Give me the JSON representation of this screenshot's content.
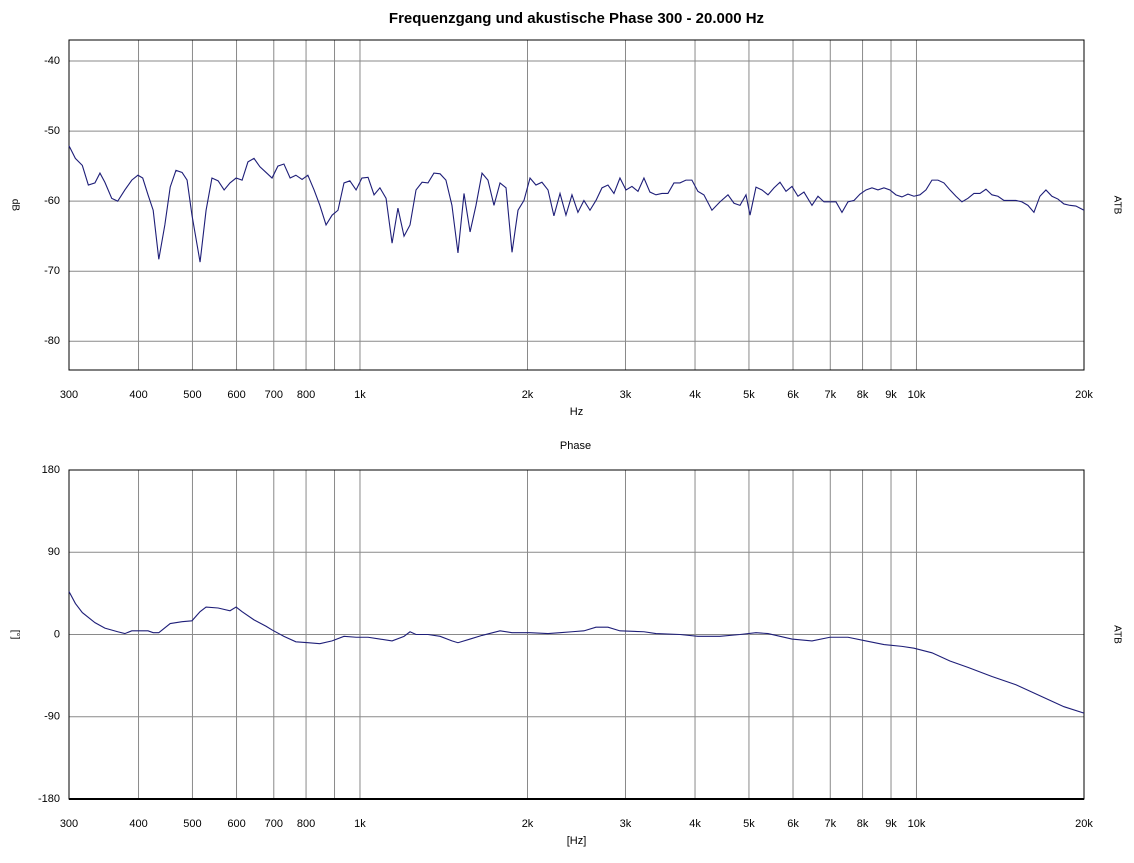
{
  "chart_data": [
    {
      "type": "line",
      "title": "Frequenzgang und akustische Phase  300 - 20.000 Hz",
      "xlabel": "Hz",
      "ylabel": "dB",
      "log_x": true,
      "grid": true,
      "x": [
        300,
        308,
        317,
        325,
        334,
        341,
        348,
        358,
        367,
        378,
        389,
        399,
        407,
        416,
        425,
        435,
        446,
        456,
        467,
        479,
        489,
        499,
        516,
        529,
        542,
        556,
        570,
        584,
        599,
        614,
        629,
        645,
        661,
        678,
        695,
        712,
        730,
        749,
        767,
        787,
        806,
        827,
        847,
        869,
        891,
        913,
        936,
        959,
        984,
        1008,
        1034,
        1060,
        1086,
        1114,
        1142,
        1170,
        1200,
        1230,
        1261,
        1293,
        1325,
        1358,
        1393,
        1427,
        1463,
        1500,
        1538,
        1577,
        1616,
        1657,
        1698,
        1741,
        1785,
        1830,
        1876,
        1923,
        1971,
        2021,
        2071,
        2123,
        2177,
        2231,
        2288,
        2345,
        2404,
        2464,
        2526,
        2590,
        2655,
        2722,
        2790,
        2860,
        2932,
        3006,
        3081,
        3159,
        3238,
        3319,
        3403,
        3488,
        3576,
        3666,
        3758,
        3852,
        3949,
        4048,
        4150,
        4290,
        4435,
        4584,
        4700,
        4818,
        4939,
        5022,
        5148,
        5277,
        5410,
        5546,
        5685,
        5828,
        5974,
        6124,
        6278,
        6490,
        6653,
        6820,
        6991,
        7167,
        7347,
        7531,
        7721,
        7915,
        8114,
        8318,
        8527,
        8741,
        8960,
        9185,
        9417,
        9653,
        9896,
        10144,
        10400,
        10661,
        10929,
        11203,
        11485,
        11774,
        12070,
        12373,
        12684,
        13003,
        13330,
        13665,
        14008,
        14361,
        14722,
        15091,
        15470,
        15859,
        16258,
        16666,
        17085,
        17515,
        17955,
        18406,
        18868,
        19342,
        20000
      ],
      "series": [
        {
          "name": "ATB",
          "color": "#1e1e78",
          "values": [
            -52.1,
            -53.9,
            -54.9,
            -57.7,
            -57.4,
            -56.0,
            -57.3,
            -59.6,
            -60.0,
            -58.4,
            -57.0,
            -56.3,
            -56.7,
            -59.1,
            -61.3,
            -68.3,
            -63.4,
            -58.0,
            -55.6,
            -55.9,
            -57.0,
            -62.0,
            -68.7,
            -61.3,
            -56.7,
            -57.1,
            -58.4,
            -57.4,
            -56.7,
            -57.0,
            -54.4,
            -53.9,
            -55.1,
            -55.9,
            -56.7,
            -55.0,
            -54.7,
            -56.7,
            -56.3,
            -56.9,
            -56.3,
            -58.4,
            -60.6,
            -63.4,
            -62.0,
            -61.3,
            -57.4,
            -57.1,
            -58.4,
            -56.7,
            -56.6,
            -59.1,
            -58.1,
            -59.6,
            -66.0,
            -61.0,
            -65.0,
            -63.4,
            -58.4,
            -57.3,
            -57.4,
            -56.0,
            -56.1,
            -57.0,
            -60.6,
            -67.4,
            -58.9,
            -64.4,
            -60.6,
            -56.0,
            -57.0,
            -60.6,
            -57.4,
            -58.1,
            -67.3,
            -61.3,
            -59.9,
            -56.7,
            -57.7,
            -57.3,
            -58.4,
            -62.1,
            -58.9,
            -62.0,
            -59.1,
            -61.6,
            -59.9,
            -61.3,
            -59.9,
            -58.1,
            -57.7,
            -58.9,
            -56.7,
            -58.4,
            -57.9,
            -58.6,
            -56.7,
            -58.7,
            -59.1,
            -58.9,
            -58.9,
            -57.4,
            -57.4,
            -57.0,
            -57.0,
            -58.6,
            -59.1,
            -61.3,
            -60.1,
            -59.1,
            -60.3,
            -60.6,
            -59.1,
            -62.0,
            -58.0,
            -58.4,
            -59.1,
            -58.1,
            -57.3,
            -58.6,
            -57.9,
            -59.3,
            -58.7,
            -60.6,
            -59.3,
            -60.1,
            -60.1,
            -60.1,
            -61.6,
            -60.1,
            -59.9,
            -59.0,
            -58.4,
            -58.1,
            -58.4,
            -58.1,
            -58.4,
            -59.1,
            -59.4,
            -59.0,
            -59.3,
            -59.1,
            -58.4,
            -57.0,
            -57.0,
            -57.4,
            -58.4,
            -59.3,
            -60.1,
            -59.6,
            -58.9,
            -58.9,
            -58.3,
            -59.1,
            -59.3,
            -59.9,
            -59.9,
            -59.9,
            -60.1,
            -60.6,
            -61.6,
            -59.3,
            -58.4,
            -59.3,
            -59.7,
            -60.4,
            -60.6,
            -60.7,
            -61.3
          ]
        }
      ],
      "xlim": [
        300,
        20000
      ],
      "xticks": [
        300,
        400,
        500,
        600,
        700,
        800,
        {
          "value": 900,
          "label": null
        },
        {
          "value": 1000,
          "label": "1k"
        },
        {
          "value": 2000,
          "label": "2k"
        },
        {
          "value": 3000,
          "label": "3k"
        },
        {
          "value": 4000,
          "label": "4k"
        },
        {
          "value": 5000,
          "label": "5k"
        },
        {
          "value": 6000,
          "label": "6k"
        },
        {
          "value": 7000,
          "label": "7k"
        },
        {
          "value": 8000,
          "label": "8k"
        },
        {
          "value": 9000,
          "label": "9k"
        },
        {
          "value": 10000,
          "label": "10k"
        },
        {
          "value": 20000,
          "label": "20k"
        }
      ],
      "ylim": [
        -84.1,
        -37
      ],
      "yticks": [
        -40,
        -50,
        -60,
        -70,
        -80
      ]
    },
    {
      "type": "line",
      "title": "Phase",
      "xlabel": "[Hz]",
      "ylabel": "[°]",
      "log_x": true,
      "grid": true,
      "x": [
        300,
        308,
        317,
        334,
        348,
        367,
        378,
        389,
        416,
        425,
        435,
        456,
        479,
        499,
        516,
        529,
        556,
        584,
        599,
        614,
        645,
        678,
        695,
        730,
        767,
        806,
        847,
        891,
        936,
        984,
        1034,
        1086,
        1142,
        1200,
        1230,
        1261,
        1325,
        1393,
        1463,
        1500,
        1577,
        1657,
        1785,
        1876,
        2021,
        2177,
        2288,
        2404,
        2526,
        2655,
        2790,
        2932,
        3238,
        3403,
        3758,
        4048,
        4435,
        4818,
        5148,
        5410,
        5685,
        5974,
        6490,
        6991,
        7531,
        8114,
        8741,
        9417,
        9896,
        10661,
        11485,
        12373,
        13665,
        15091,
        16666,
        18406,
        20000
      ],
      "series": [
        {
          "name": "ATB",
          "color": "#1e1e78",
          "values": [
            47,
            34,
            24,
            13,
            7,
            3,
            1,
            4,
            4,
            2,
            2,
            12,
            14,
            15,
            25,
            30,
            29,
            26,
            30,
            25,
            16,
            9,
            5,
            -2,
            -8,
            -9,
            -10,
            -7,
            -2,
            -3,
            -3,
            -5,
            -7,
            -2,
            3,
            0,
            0,
            -2,
            -7,
            -9,
            -5,
            -1,
            4,
            2,
            2,
            1,
            2,
            3,
            4,
            8,
            8,
            4,
            3,
            1,
            0,
            -2,
            -2,
            0,
            2,
            1,
            -2,
            -5,
            -7,
            -3,
            -3,
            -7,
            -11,
            -13,
            -15,
            -20,
            -29,
            -36,
            -46,
            -55,
            -67,
            -79,
            -86
          ]
        }
      ],
      "xlim": [
        300,
        20000
      ],
      "xticks": [
        300,
        400,
        500,
        600,
        700,
        800,
        {
          "value": 900,
          "label": null
        },
        {
          "value": 1000,
          "label": "1k"
        },
        {
          "value": 2000,
          "label": "2k"
        },
        {
          "value": 3000,
          "label": "3k"
        },
        {
          "value": 4000,
          "label": "4k"
        },
        {
          "value": 5000,
          "label": "5k"
        },
        {
          "value": 6000,
          "label": "6k"
        },
        {
          "value": 7000,
          "label": "7k"
        },
        {
          "value": 8000,
          "label": "8k"
        },
        {
          "value": 9000,
          "label": "9k"
        },
        {
          "value": 10000,
          "label": "10k"
        },
        {
          "value": 20000,
          "label": "20k"
        }
      ],
      "ylim": [
        -180,
        180
      ],
      "yticks": [
        180,
        90,
        0,
        -90,
        -180
      ]
    }
  ]
}
